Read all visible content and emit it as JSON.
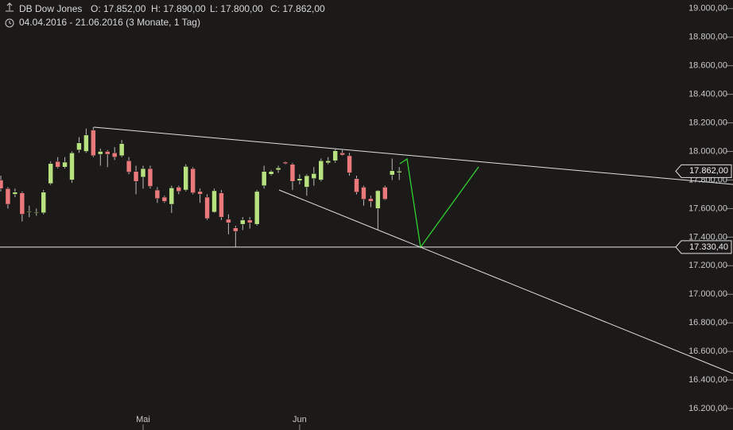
{
  "chart_data": {
    "type": "candlestick",
    "title": "DB Dow Jones",
    "header_values": [
      "O: 17.852,00",
      "H: 17.890,00",
      "L: 17.800,00",
      "C: 17.862,00"
    ],
    "subtitle": "04.04.2016 - 21.06.2016 (3 Monate, 1 Tag)",
    "categories": [
      null,
      null,
      null,
      null,
      null,
      null,
      null,
      null,
      null,
      null,
      null,
      null,
      null,
      null,
      null,
      null,
      null,
      null,
      null,
      null,
      "Mai",
      null,
      null,
      null,
      null,
      null,
      null,
      null,
      null,
      null,
      null,
      null,
      null,
      null,
      null,
      null,
      null,
      null,
      null,
      null,
      null,
      null,
      "Jun",
      null,
      null,
      null,
      null,
      null,
      null,
      null,
      null,
      null,
      null,
      null,
      null,
      null,
      null
    ],
    "open": [
      17800,
      17740,
      17700,
      17710,
      17575,
      17570,
      17570,
      17775,
      17930,
      17890,
      17800,
      18010,
      18000,
      18150,
      17980,
      18000,
      17990,
      17970,
      17935,
      17860,
      17820,
      17880,
      17730,
      17680,
      17630,
      17750,
      17730,
      17880,
      17720,
      17680,
      17575,
      17710,
      17525,
      17465,
      17490,
      17520,
      17490,
      17760,
      17840,
      17870,
      17925,
      17910,
      17795,
      17750,
      17810,
      17800,
      17920,
      17935,
      17990,
      17970,
      17810,
      17750,
      17670,
      17600,
      17750,
      17835,
      17852
    ],
    "high": [
      17830,
      17750,
      17740,
      17720,
      17620,
      17600,
      17730,
      17930,
      17960,
      17960,
      18000,
      18100,
      18160,
      18170,
      18020,
      18010,
      18030,
      18080,
      17960,
      17900,
      17900,
      17900,
      17750,
      17690,
      17760,
      17760,
      17910,
      17890,
      17740,
      17700,
      17740,
      17730,
      17560,
      17480,
      17540,
      17540,
      17730,
      17900,
      17870,
      17900,
      17930,
      17920,
      17840,
      17840,
      17890,
      17950,
      17960,
      18020,
      18010,
      17990,
      17830,
      17760,
      17690,
      17730,
      17760,
      17950,
      17890
    ],
    "low": [
      17720,
      17600,
      17680,
      17510,
      17540,
      17550,
      17560,
      17765,
      17880,
      17880,
      17780,
      17990,
      17990,
      17960,
      17900,
      17890,
      17940,
      17960,
      17840,
      17700,
      17740,
      17740,
      17640,
      17640,
      17570,
      17700,
      17720,
      17700,
      17640,
      17520,
      17570,
      17520,
      17420,
      17330,
      17450,
      17460,
      17480,
      17740,
      17830,
      17850,
      17910,
      17730,
      17770,
      17690,
      17760,
      17790,
      17910,
      17920,
      17970,
      17830,
      17700,
      17620,
      17610,
      17450,
      17660,
      17800,
      17800
    ],
    "close": [
      17740,
      17630,
      17715,
      17560,
      17580,
      17575,
      17715,
      17915,
      17890,
      17925,
      17990,
      18060,
      18115,
      17970,
      18000,
      17980,
      17960,
      18055,
      17855,
      17790,
      17880,
      17755,
      17670,
      17650,
      17745,
      17720,
      17895,
      17710,
      17700,
      17530,
      17725,
      17540,
      17500,
      17440,
      17520,
      17500,
      17720,
      17860,
      17860,
      17885,
      17915,
      17790,
      17810,
      17830,
      17845,
      17935,
      17935,
      18005,
      17975,
      17850,
      17715,
      17665,
      17650,
      17725,
      17665,
      17865,
      17862
    ],
    "up_color": "#b7e27f",
    "down_color": "#e9797b",
    "ylim": [
      16050,
      19060
    ],
    "yticks": [
      {
        "value": 19000,
        "label": "19.000,00"
      },
      {
        "value": 18800,
        "label": "18.800,00"
      },
      {
        "value": 18600,
        "label": "18.600,00"
      },
      {
        "value": 18400,
        "label": "18.400,00"
      },
      {
        "value": 18200,
        "label": "18.200,00"
      },
      {
        "value": 18000,
        "label": "18.000,00"
      },
      {
        "value": 17800,
        "label": "17.800,00"
      },
      {
        "value": 17600,
        "label": "17.600,00"
      },
      {
        "value": 17400,
        "label": "17.400,00"
      },
      {
        "value": 17200,
        "label": "17.200,00"
      },
      {
        "value": 17000,
        "label": "17.000,00"
      },
      {
        "value": 16800,
        "label": "16.800,00"
      },
      {
        "value": 16600,
        "label": "16.600,00"
      },
      {
        "value": 16400,
        "label": "16.400,00"
      },
      {
        "value": 16200,
        "label": "16.200,00"
      }
    ],
    "last_price": {
      "value": 17862,
      "label": "17.862,00"
    },
    "level": {
      "value": 17330.4,
      "label": "17.330,40"
    }
  }
}
